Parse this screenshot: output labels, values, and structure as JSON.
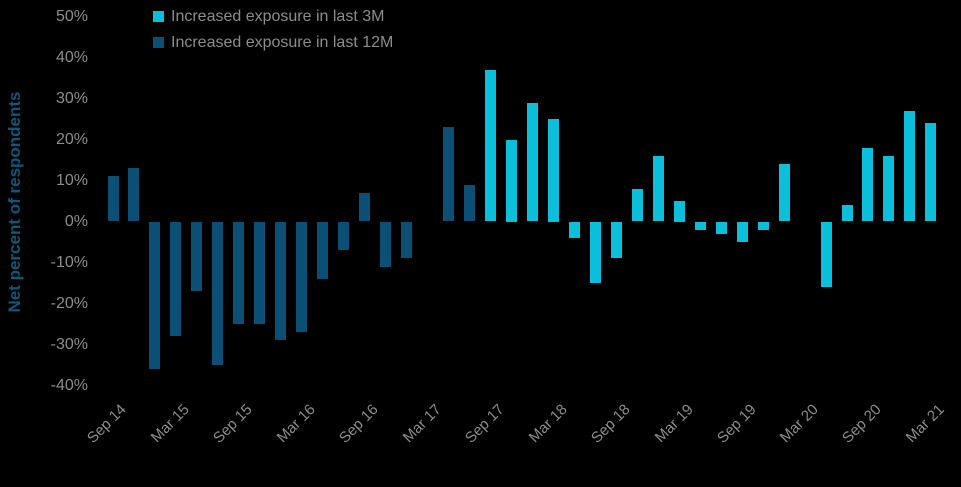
{
  "chart_data": {
    "type": "bar",
    "title": "",
    "ylabel": "Net percent of respondents",
    "ylim": [
      -40,
      50
    ],
    "grid": false,
    "background": "#000000",
    "legend_position": "top-left",
    "y_ticks": [
      {
        "label": "50%",
        "value": 50
      },
      {
        "label": "40%",
        "value": 40
      },
      {
        "label": "30%",
        "value": 30
      },
      {
        "label": "20%",
        "value": 20
      },
      {
        "label": "10%",
        "value": 10
      },
      {
        "label": "0%",
        "value": 0
      },
      {
        "label": "-10%",
        "value": -10
      },
      {
        "label": "-20%",
        "value": -20
      },
      {
        "label": "-30%",
        "value": -30
      },
      {
        "label": "-40%",
        "value": -40
      }
    ],
    "n_slots": 40,
    "x_ticks": [
      {
        "label": "Sep 14",
        "slot": 0
      },
      {
        "label": "Mar 15",
        "slot": 3
      },
      {
        "label": "Sep 15",
        "slot": 6
      },
      {
        "label": "Mar 16",
        "slot": 9
      },
      {
        "label": "Sep 16",
        "slot": 12
      },
      {
        "label": "Mar 17",
        "slot": 15
      },
      {
        "label": "Sep 17",
        "slot": 18
      },
      {
        "label": "Mar 18",
        "slot": 21
      },
      {
        "label": "Sep 18",
        "slot": 24
      },
      {
        "label": "Mar 19",
        "slot": 27
      },
      {
        "label": "Sep 19",
        "slot": 30
      },
      {
        "label": "Mar 20",
        "slot": 33
      },
      {
        "label": "Sep 20",
        "slot": 36
      },
      {
        "label": "Mar 21",
        "slot": 39
      }
    ],
    "series": [
      {
        "name": "Increased exposure in last 3M",
        "color": "#0bbfda",
        "values": [
          null,
          null,
          null,
          null,
          null,
          null,
          null,
          null,
          null,
          null,
          null,
          null,
          null,
          null,
          null,
          null,
          null,
          null,
          37,
          20,
          29,
          25,
          -4,
          -15,
          -9,
          8,
          16,
          5,
          -2,
          -3,
          -5,
          -2,
          14,
          null,
          -16,
          4,
          18,
          16,
          27,
          24
        ]
      },
      {
        "name": "Increased exposure in last 12M",
        "color": "#0b4f74",
        "values": [
          11,
          13,
          -36,
          -28,
          -17,
          -35,
          -25,
          -25,
          -29,
          -27,
          -14,
          -7,
          7,
          -11,
          -9,
          null,
          23,
          9,
          null,
          null,
          null,
          null,
          null,
          null,
          null,
          null,
          null,
          null,
          null,
          null,
          null,
          null,
          null,
          null,
          null,
          null,
          null,
          null,
          null,
          null
        ]
      }
    ],
    "colors": {
      "series_3m": "#0bbfda",
      "series_12m": "#0b4f74",
      "axis_text": "#8c8c8c",
      "y_axis_title": "#0d577c",
      "background": "#000000"
    }
  }
}
